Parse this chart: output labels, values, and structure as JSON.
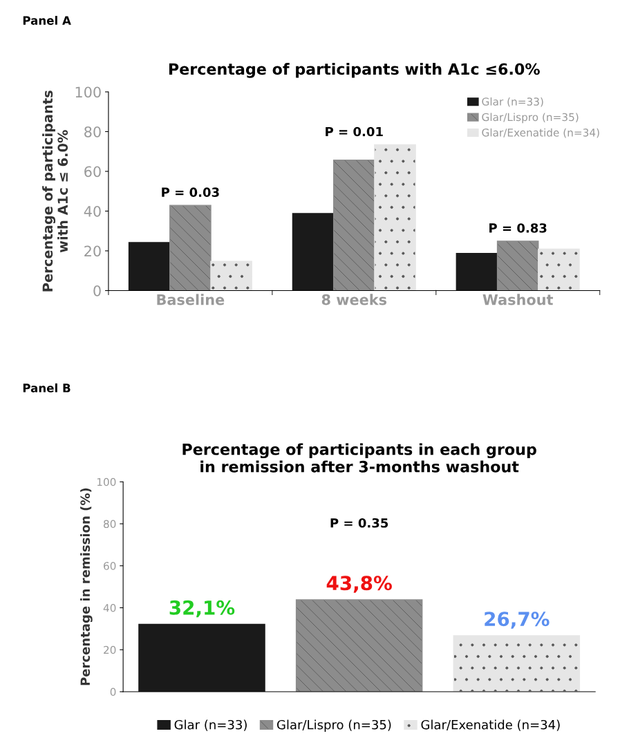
{
  "chart_data": [
    {
      "type": "bar",
      "title": "Percentage of participants with A1c ≤6.0%",
      "ylabel": "Percentage of participants\nwith A1c ≤ 6.0%",
      "categories": [
        "Baseline",
        "8 weeks",
        "Washout"
      ],
      "series": [
        {
          "name": "Glar (n=33)",
          "color": "#1a1a1a",
          "values": [
            24.2,
            38.8,
            18.7
          ]
        },
        {
          "name": "Glar/Lispro (n=35)",
          "color": "#8c8c8c",
          "values": [
            42.9,
            65.7,
            24.9
          ]
        },
        {
          "name": "Glar/Exenatide (n=34)",
          "color": "#e6e6e6",
          "values": [
            14.7,
            73.4,
            20.9
          ]
        }
      ],
      "ylim": [
        0,
        100
      ],
      "yticks": [
        0,
        20,
        40,
        60,
        80,
        100
      ],
      "grid": false,
      "legend": "top right",
      "annotations": [
        "Panel A",
        "P = 0.03",
        "P = 0.01",
        "P = 0.83"
      ]
    },
    {
      "type": "bar",
      "title": "Percentage of participants in each group\nin remission after 3-months washout",
      "ylabel": "Percentage in remission (%)",
      "categories": [
        null,
        null,
        null
      ],
      "series": [
        {
          "name": "Glar (n=33)",
          "color": "#1a1a1a",
          "values": [
            32.1,
            null,
            null
          ],
          "value_labels": [
            "32,1%",
            null,
            null
          ]
        },
        {
          "name": "Glar/Lispro (n=35)",
          "color": "#8c8c8c",
          "values": [
            null,
            43.8,
            null
          ],
          "value_labels": [
            null,
            "43,8%",
            null
          ]
        },
        {
          "name": "Glar/Exenatide (n=34)",
          "color": "#e6e6e6",
          "values": [
            null,
            null,
            26.7
          ],
          "value_labels": [
            null,
            null,
            "26,7%"
          ]
        }
      ],
      "ylim": [
        0,
        100
      ],
      "yticks": [
        0,
        20,
        40,
        60,
        80,
        100
      ],
      "grid": false,
      "legend": "bottom",
      "annotations": [
        "Panel B",
        "P = 0.35"
      ]
    }
  ]
}
